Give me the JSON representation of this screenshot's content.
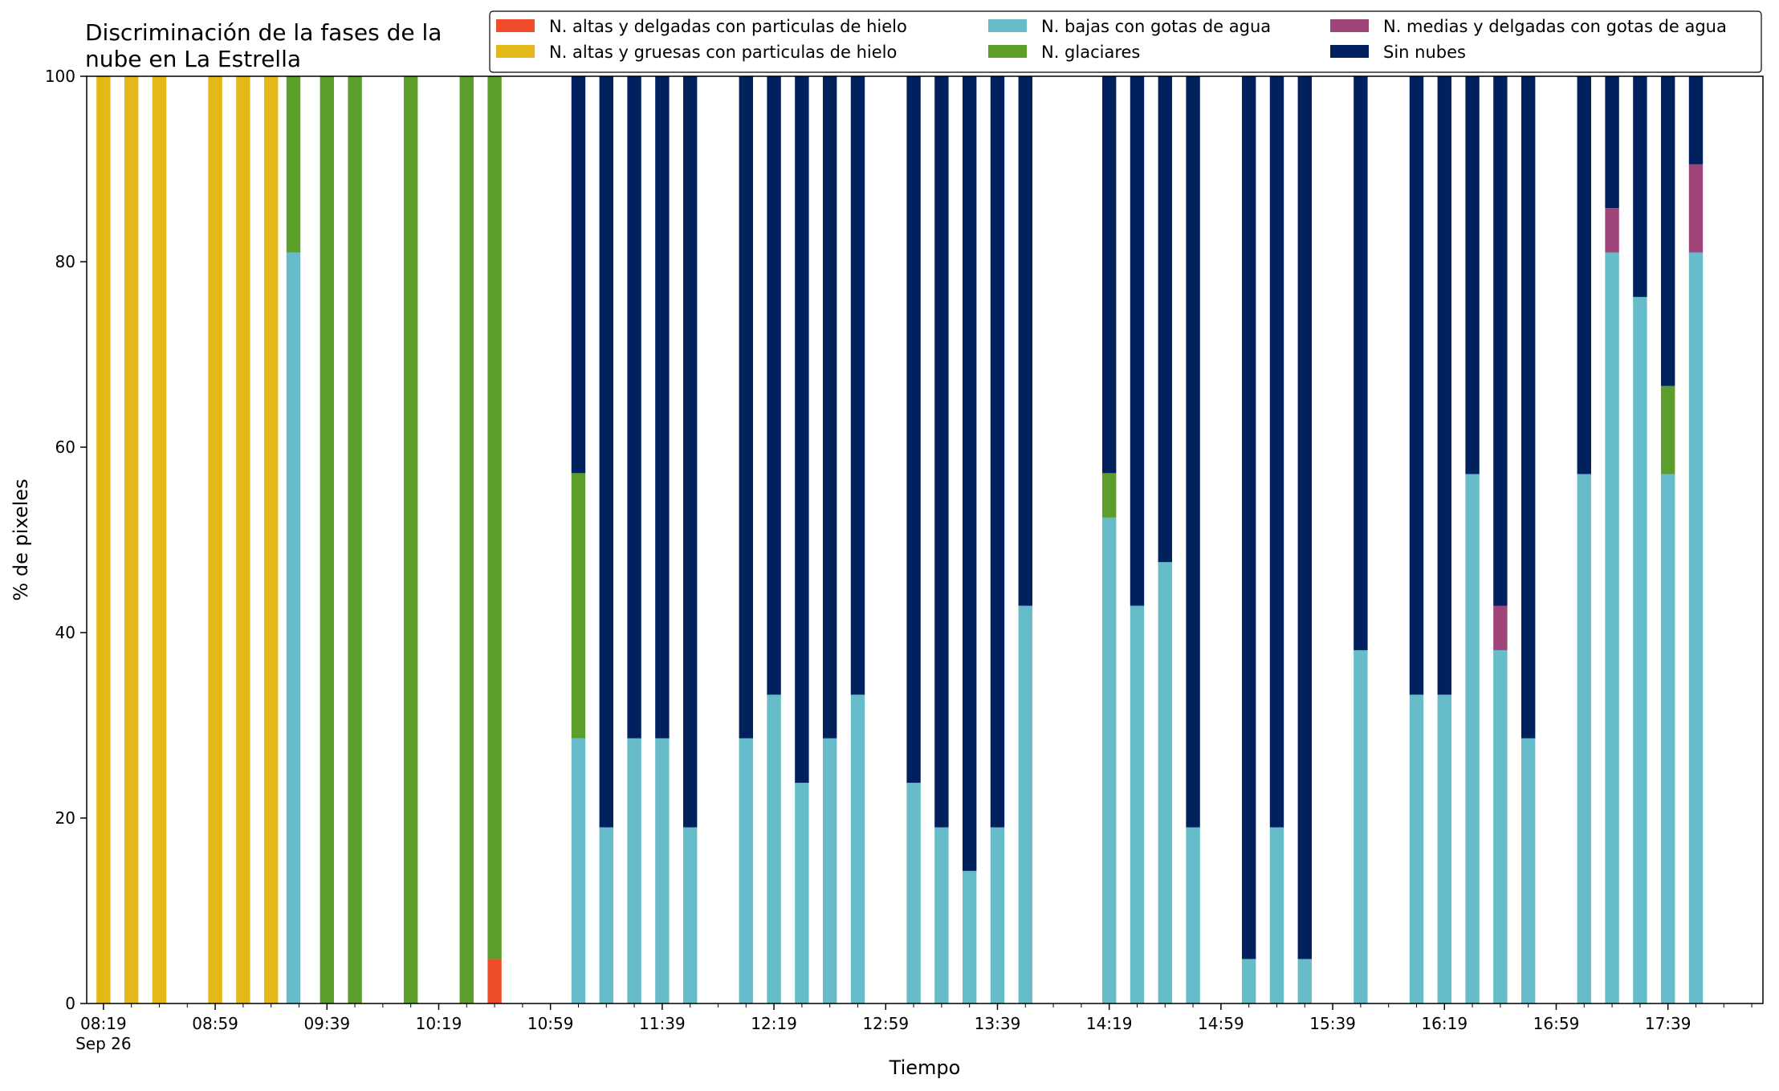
{
  "chart_data": {
    "type": "bar",
    "stacked": true,
    "title": "Discriminación de la fases de la\nnube en La Estrella",
    "title_lines": [
      "Discriminación de la fases de la",
      "nube en La Estrella"
    ],
    "xlabel": "Tiempo",
    "ylabel": "% de pixeles",
    "ylim": [
      0,
      100
    ],
    "yticks": [
      "0",
      "20",
      "40",
      "60",
      "80",
      "100"
    ],
    "xtick_labels": [
      "08:19",
      "08:59",
      "09:39",
      "10:19",
      "10:59",
      "11:39",
      "12:19",
      "12:59",
      "13:39",
      "14:19",
      "14:59",
      "15:39",
      "16:19",
      "16:59",
      "17:39"
    ],
    "xtick_sublabel": "Sep 26",
    "x_start_minute": 499,
    "x_end_minute": 1087,
    "bar_width_minutes": 5,
    "legend_position": "top-right",
    "grid": false,
    "series": [
      {
        "name": "N. altas y delgadas con particulas de hielo",
        "color": "#f04e2b"
      },
      {
        "name": "N. altas y gruesas con particulas de hielo",
        "color": "#e4b819"
      },
      {
        "name": "N. bajas con gotas de agua",
        "color": "#66bdc9"
      },
      {
        "name": "N. glaciares",
        "color": "#5c9e2a"
      },
      {
        "name": "N. medias y delgadas con gotas de agua",
        "color": "#a0457a"
      },
      {
        "name": "Sin nubes",
        "color": "#00205e"
      }
    ],
    "bars": [
      {
        "time": "08:19",
        "minute": 499,
        "values": [
          0,
          100,
          0,
          0,
          0,
          0
        ]
      },
      {
        "time": "08:29",
        "minute": 509,
        "values": [
          0,
          100,
          0,
          0,
          0,
          0
        ]
      },
      {
        "time": "08:39",
        "minute": 519,
        "values": [
          0,
          100,
          0,
          0,
          0,
          0
        ]
      },
      {
        "time": "08:59",
        "minute": 539,
        "values": [
          0,
          100,
          0,
          0,
          0,
          0
        ]
      },
      {
        "time": "09:09",
        "minute": 549,
        "values": [
          0,
          100,
          0,
          0,
          0,
          0
        ]
      },
      {
        "time": "09:19",
        "minute": 559,
        "values": [
          0,
          100,
          0,
          0,
          0,
          0
        ]
      },
      {
        "time": "09:27",
        "minute": 567,
        "values": [
          0,
          0,
          81,
          19,
          0,
          0
        ]
      },
      {
        "time": "09:39",
        "minute": 579,
        "values": [
          0,
          0,
          0,
          100,
          0,
          0
        ]
      },
      {
        "time": "09:49",
        "minute": 589,
        "values": [
          0,
          0,
          0,
          100,
          0,
          0
        ]
      },
      {
        "time": "10:09",
        "minute": 609,
        "values": [
          0,
          0,
          0,
          100,
          0,
          0
        ]
      },
      {
        "time": "10:29",
        "minute": 629,
        "values": [
          0,
          0,
          0,
          100,
          0,
          0
        ]
      },
      {
        "time": "10:39",
        "minute": 639,
        "values": [
          4.8,
          0,
          0,
          95.2,
          0,
          0
        ]
      },
      {
        "time": "11:09",
        "minute": 669,
        "values": [
          0,
          0,
          28.6,
          28.6,
          0,
          42.8
        ]
      },
      {
        "time": "11:19",
        "minute": 679,
        "values": [
          0,
          0,
          19,
          0,
          0,
          81
        ]
      },
      {
        "time": "11:29",
        "minute": 689,
        "values": [
          0,
          0,
          28.6,
          0,
          0,
          71.4
        ]
      },
      {
        "time": "11:39",
        "minute": 699,
        "values": [
          0,
          0,
          28.6,
          0,
          0,
          71.4
        ]
      },
      {
        "time": "11:49",
        "minute": 709,
        "values": [
          0,
          0,
          19,
          0,
          0,
          81
        ]
      },
      {
        "time": "12:09",
        "minute": 729,
        "values": [
          0,
          0,
          28.6,
          0,
          0,
          71.4
        ]
      },
      {
        "time": "12:19",
        "minute": 739,
        "values": [
          0,
          0,
          33.3,
          0,
          0,
          66.7
        ]
      },
      {
        "time": "12:29",
        "minute": 749,
        "values": [
          0,
          0,
          23.8,
          0,
          0,
          76.2
        ]
      },
      {
        "time": "12:39",
        "minute": 759,
        "values": [
          0,
          0,
          28.6,
          0,
          0,
          71.4
        ]
      },
      {
        "time": "12:49",
        "minute": 769,
        "values": [
          0,
          0,
          33.3,
          0,
          0,
          66.7
        ]
      },
      {
        "time": "13:09",
        "minute": 789,
        "values": [
          0,
          0,
          23.8,
          0,
          0,
          76.2
        ]
      },
      {
        "time": "13:19",
        "minute": 799,
        "values": [
          0,
          0,
          19,
          0,
          0,
          81
        ]
      },
      {
        "time": "13:29",
        "minute": 809,
        "values": [
          0,
          0,
          14.3,
          0,
          0,
          85.7
        ]
      },
      {
        "time": "13:39",
        "minute": 819,
        "values": [
          0,
          0,
          19,
          0,
          0,
          81
        ]
      },
      {
        "time": "13:49",
        "minute": 829,
        "values": [
          0,
          0,
          42.9,
          0,
          0,
          57.1
        ]
      },
      {
        "time": "14:19",
        "minute": 859,
        "values": [
          0,
          0,
          52.4,
          4.8,
          0,
          42.8
        ]
      },
      {
        "time": "14:29",
        "minute": 869,
        "values": [
          0,
          0,
          42.9,
          0,
          0,
          57.1
        ]
      },
      {
        "time": "14:39",
        "minute": 879,
        "values": [
          0,
          0,
          47.6,
          0,
          0,
          52.4
        ]
      },
      {
        "time": "14:49",
        "minute": 889,
        "values": [
          0,
          0,
          19,
          0,
          0,
          81
        ]
      },
      {
        "time": "15:09",
        "minute": 909,
        "values": [
          0,
          0,
          4.8,
          0,
          0,
          95.2
        ]
      },
      {
        "time": "15:19",
        "minute": 919,
        "values": [
          0,
          0,
          19,
          0,
          0,
          81
        ]
      },
      {
        "time": "15:29",
        "minute": 929,
        "values": [
          0,
          0,
          4.8,
          0,
          0,
          95.2
        ]
      },
      {
        "time": "15:49",
        "minute": 949,
        "values": [
          0,
          0,
          38.1,
          0,
          0,
          61.9
        ]
      },
      {
        "time": "16:09",
        "minute": 969,
        "values": [
          0,
          0,
          33.3,
          0,
          0,
          66.7
        ]
      },
      {
        "time": "16:19",
        "minute": 979,
        "values": [
          0,
          0,
          33.3,
          0,
          0,
          66.7
        ]
      },
      {
        "time": "16:29",
        "minute": 989,
        "values": [
          0,
          0,
          57.1,
          0,
          0,
          42.9
        ]
      },
      {
        "time": "16:39",
        "minute": 999,
        "values": [
          0,
          0,
          38.1,
          0,
          4.8,
          57.1
        ]
      },
      {
        "time": "16:49",
        "minute": 1009,
        "values": [
          0,
          0,
          28.6,
          0,
          0,
          71.4
        ]
      },
      {
        "time": "17:09",
        "minute": 1029,
        "values": [
          0,
          0,
          57.1,
          0,
          0,
          42.9
        ]
      },
      {
        "time": "17:19",
        "minute": 1039,
        "values": [
          0,
          0,
          81,
          0,
          4.8,
          14.2
        ]
      },
      {
        "time": "17:29",
        "minute": 1049,
        "values": [
          0,
          0,
          76.2,
          0,
          0,
          23.8
        ]
      },
      {
        "time": "17:39",
        "minute": 1059,
        "values": [
          0,
          0,
          57.1,
          9.5,
          0,
          33.4
        ]
      },
      {
        "time": "17:49",
        "minute": 1069,
        "values": [
          0,
          0,
          81,
          0,
          9.5,
          9.5
        ]
      }
    ]
  }
}
